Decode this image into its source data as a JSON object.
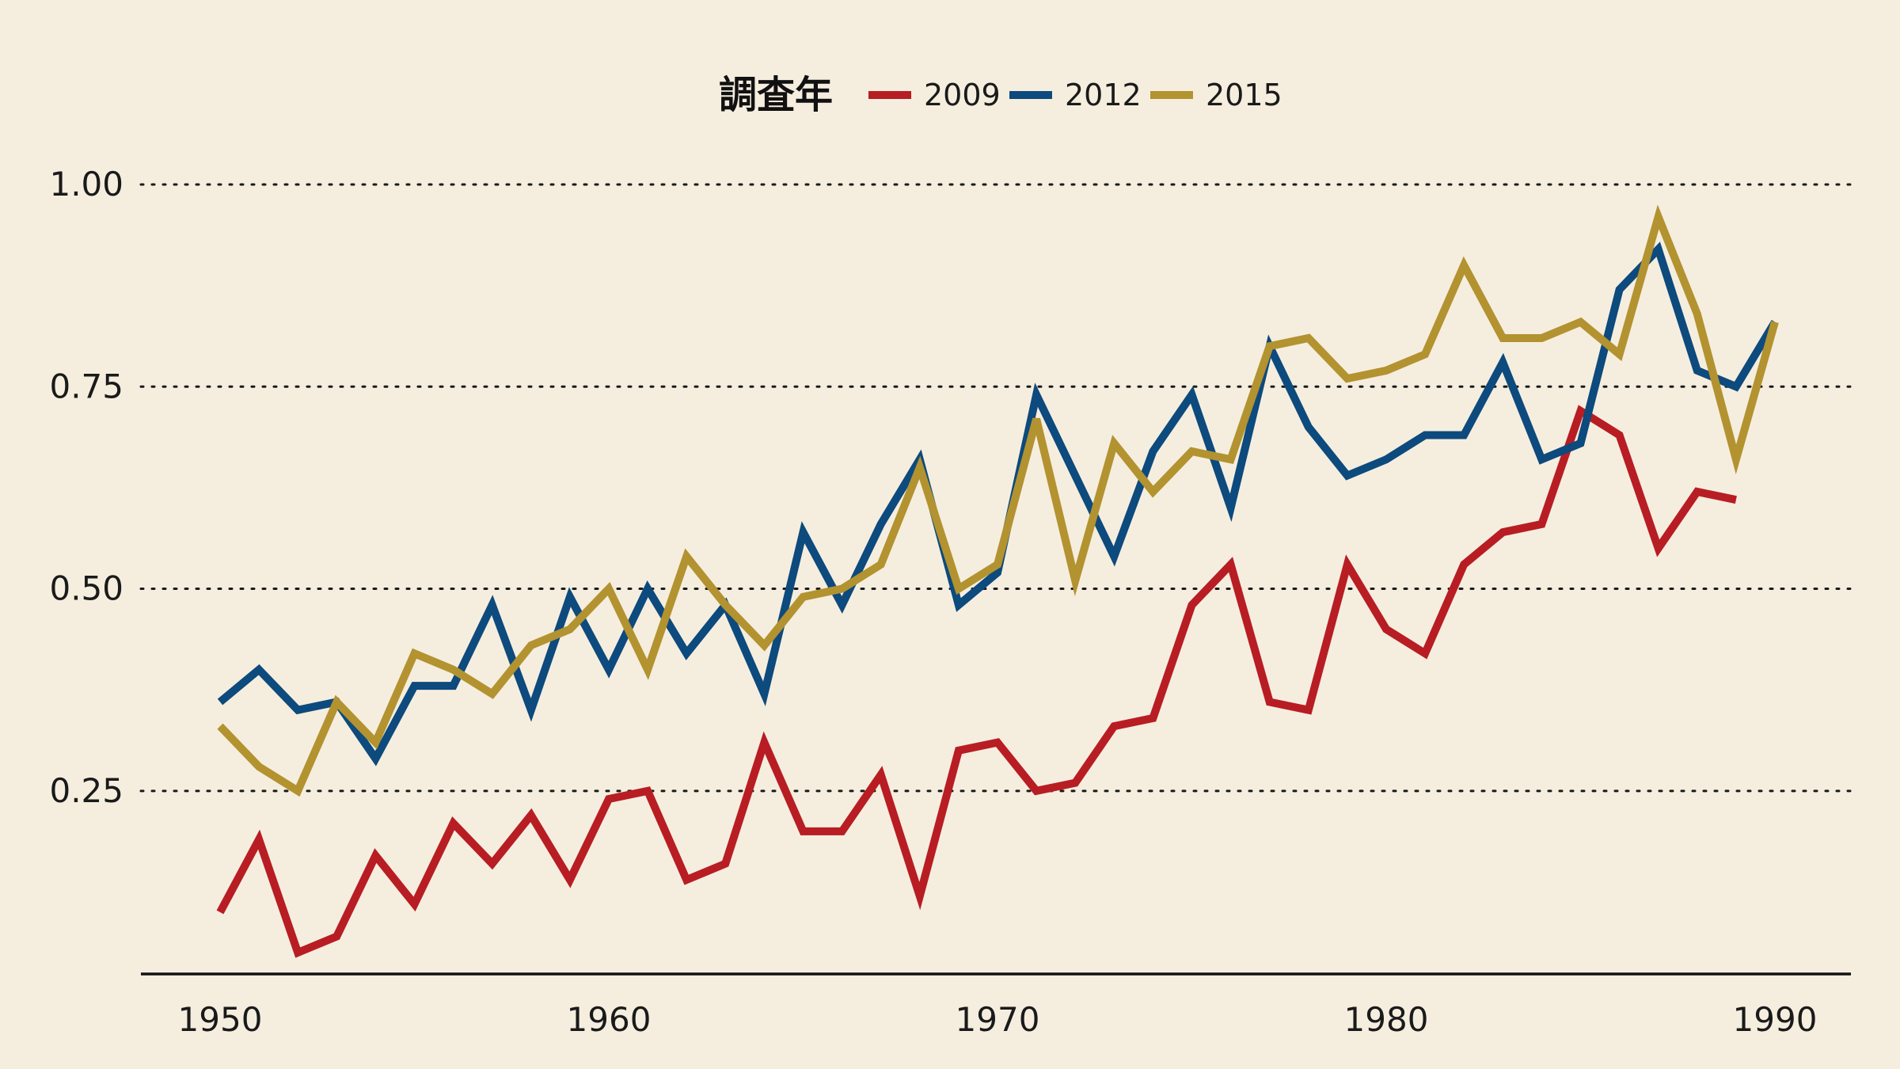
{
  "chart_data": {
    "type": "line",
    "title": "",
    "xlabel": "",
    "ylabel": "",
    "legend": {
      "title": "調査年",
      "position": "top-center"
    },
    "x": [
      1950,
      1951,
      1952,
      1953,
      1954,
      1955,
      1956,
      1957,
      1958,
      1959,
      1960,
      1961,
      1962,
      1963,
      1964,
      1965,
      1966,
      1967,
      1968,
      1969,
      1970,
      1971,
      1972,
      1973,
      1974,
      1975,
      1976,
      1977,
      1978,
      1979,
      1980,
      1981,
      1982,
      1983,
      1984,
      1985,
      1986,
      1987,
      1988,
      1989,
      1990
    ],
    "xlim": [
      1948,
      1992
    ],
    "ylim": [
      0.0236,
      1.0
    ],
    "xticks": [
      1950,
      1960,
      1970,
      1980,
      1990
    ],
    "yticks": [
      0.25,
      0.5,
      0.75,
      1.0
    ],
    "ytick_labels": [
      "0.25",
      "0.50",
      "0.75",
      "1.00"
    ],
    "grid": "horizontal-dotted",
    "series": [
      {
        "name": "2009",
        "color": "#b81d24",
        "values": [
          0.1,
          0.19,
          0.05,
          0.07,
          0.17,
          0.11,
          0.21,
          0.16,
          0.22,
          0.14,
          0.24,
          0.25,
          0.14,
          0.16,
          0.31,
          0.2,
          0.2,
          0.27,
          0.12,
          0.3,
          0.31,
          0.25,
          0.26,
          0.33,
          0.34,
          0.48,
          0.53,
          0.36,
          0.35,
          0.53,
          0.45,
          0.42,
          0.53,
          0.57,
          0.58,
          0.72,
          0.69,
          0.55,
          0.62,
          0.61,
          null
        ]
      },
      {
        "name": "2012",
        "color": "#0d4a7d",
        "values": [
          0.36,
          0.4,
          0.35,
          0.36,
          0.29,
          0.38,
          0.38,
          0.48,
          0.35,
          0.49,
          0.4,
          0.5,
          0.42,
          0.48,
          0.37,
          0.57,
          0.48,
          0.58,
          0.66,
          0.48,
          0.52,
          0.74,
          0.64,
          0.54,
          0.67,
          0.74,
          0.6,
          0.8,
          0.7,
          0.64,
          0.66,
          0.69,
          0.69,
          0.78,
          0.66,
          0.68,
          0.87,
          0.92,
          0.77,
          0.75,
          0.83
        ]
      },
      {
        "name": "2015",
        "color": "#b39230",
        "values": [
          0.33,
          0.28,
          0.25,
          0.36,
          0.31,
          0.42,
          0.4,
          0.37,
          0.43,
          0.45,
          0.5,
          0.4,
          0.54,
          0.48,
          0.43,
          0.49,
          0.5,
          0.53,
          0.65,
          0.5,
          0.53,
          0.71,
          0.51,
          0.68,
          0.62,
          0.67,
          0.66,
          0.8,
          0.81,
          0.76,
          0.77,
          0.79,
          0.9,
          0.81,
          0.81,
          0.83,
          0.79,
          0.96,
          0.84,
          0.66,
          0.83
        ]
      }
    ]
  }
}
